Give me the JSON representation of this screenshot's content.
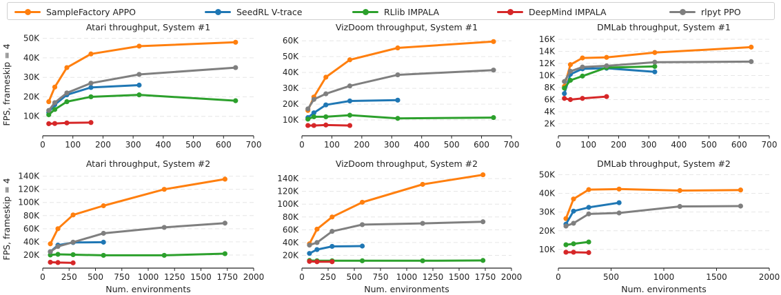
{
  "legend": {
    "items": [
      {
        "name": "SampleFactory APPO",
        "color": "#ff7f0e"
      },
      {
        "name": "SeedRL V-trace",
        "color": "#1f77b4"
      },
      {
        "name": "RLlib IMPALA",
        "color": "#2ca02c"
      },
      {
        "name": "DeepMind IMPALA",
        "color": "#d62728"
      },
      {
        "name": "rlpyt PPO",
        "color": "#7f7f7f"
      }
    ]
  },
  "ylabel_shared": "FPS, frameskip = 4",
  "xlabel_shared": "Num. environments",
  "chart_data": [
    {
      "type": "line",
      "title": "Atari throughput, System #1",
      "xlim": [
        0,
        700
      ],
      "xticks": [
        0,
        100,
        200,
        300,
        400,
        500,
        600,
        700
      ],
      "ylim": [
        0,
        52000
      ],
      "yticks": [
        10000,
        20000,
        30000,
        40000,
        50000
      ],
      "yticklabels": [
        "10K",
        "20K",
        "30K",
        "40K",
        "50K"
      ],
      "series": [
        {
          "name": "SampleFactory APPO",
          "color": "#ff7f0e",
          "x": [
            20,
            40,
            80,
            160,
            320,
            640
          ],
          "y": [
            17500,
            25000,
            35000,
            42000,
            46000,
            48000
          ]
        },
        {
          "name": "SeedRL V-trace",
          "color": "#1f77b4",
          "x": [
            20,
            40,
            80,
            160,
            320
          ],
          "y": [
            12000,
            16000,
            21000,
            24800,
            26000
          ]
        },
        {
          "name": "RLlib IMPALA",
          "color": "#2ca02c",
          "x": [
            20,
            40,
            80,
            160,
            320,
            640
          ],
          "y": [
            10800,
            13500,
            17500,
            20000,
            21000,
            18000
          ]
        },
        {
          "name": "DeepMind IMPALA",
          "color": "#d62728",
          "x": [
            20,
            40,
            80,
            160
          ],
          "y": [
            6200,
            6300,
            6600,
            6800
          ]
        },
        {
          "name": "rlpyt PPO",
          "color": "#7f7f7f",
          "x": [
            20,
            40,
            80,
            160,
            320,
            640
          ],
          "y": [
            13000,
            17000,
            22000,
            27000,
            31500,
            35000
          ]
        }
      ]
    },
    {
      "type": "line",
      "title": "VizDoom throughput, System #1",
      "xlim": [
        0,
        700
      ],
      "xticks": [
        0,
        100,
        200,
        300,
        400,
        500,
        600,
        700
      ],
      "ylim": [
        0,
        64000
      ],
      "yticks": [
        10000,
        20000,
        30000,
        40000,
        50000,
        60000
      ],
      "yticklabels": [
        "10K",
        "20K",
        "30K",
        "40K",
        "50K",
        "60K"
      ],
      "series": [
        {
          "name": "SampleFactory APPO",
          "color": "#ff7f0e",
          "x": [
            20,
            40,
            80,
            160,
            320,
            640
          ],
          "y": [
            16000,
            24500,
            37000,
            48000,
            55500,
            59500
          ]
        },
        {
          "name": "SeedRL V-trace",
          "color": "#1f77b4",
          "x": [
            20,
            40,
            80,
            160,
            320
          ],
          "y": [
            11500,
            14500,
            19500,
            22000,
            22500
          ]
        },
        {
          "name": "RLlib IMPALA",
          "color": "#2ca02c",
          "x": [
            20,
            40,
            80,
            160,
            320,
            640
          ],
          "y": [
            10500,
            12000,
            12000,
            13000,
            11000,
            11500
          ]
        },
        {
          "name": "DeepMind IMPALA",
          "color": "#d62728",
          "x": [
            20,
            40,
            80,
            160
          ],
          "y": [
            6500,
            6500,
            6800,
            6500
          ]
        },
        {
          "name": "rlpyt PPO",
          "color": "#7f7f7f",
          "x": [
            20,
            40,
            80,
            160,
            320,
            640
          ],
          "y": [
            17000,
            23000,
            26500,
            31500,
            38500,
            41500
          ]
        }
      ]
    },
    {
      "type": "line",
      "title": "DMLab throughput, System #1",
      "xlim": [
        0,
        700
      ],
      "xticks": [
        0,
        100,
        200,
        300,
        400,
        500,
        600,
        700
      ],
      "ylim": [
        0,
        16800
      ],
      "yticks": [
        2000,
        4000,
        6000,
        8000,
        10000,
        12000,
        14000,
        16000
      ],
      "yticklabels": [
        "2K",
        "4K",
        "6K",
        "8K",
        "10K",
        "12K",
        "14K",
        "16K"
      ],
      "series": [
        {
          "name": "SampleFactory APPO",
          "color": "#ff7f0e",
          "x": [
            20,
            40,
            80,
            160,
            320,
            640
          ],
          "y": [
            8200,
            11800,
            12900,
            13000,
            13800,
            14700
          ]
        },
        {
          "name": "SeedRL V-trace",
          "color": "#1f77b4",
          "x": [
            20,
            40,
            80,
            160,
            320
          ],
          "y": [
            7000,
            10200,
            11100,
            11200,
            10600
          ]
        },
        {
          "name": "RLlib IMPALA",
          "color": "#2ca02c",
          "x": [
            20,
            40,
            80,
            160,
            320
          ],
          "y": [
            7900,
            9200,
            9900,
            11300,
            11500
          ]
        },
        {
          "name": "DeepMind IMPALA",
          "color": "#d62728",
          "x": [
            20,
            40,
            80,
            160
          ],
          "y": [
            6200,
            6000,
            6200,
            6500
          ]
        },
        {
          "name": "rlpyt PPO",
          "color": "#7f7f7f",
          "x": [
            20,
            40,
            80,
            160,
            320,
            640
          ],
          "y": [
            9000,
            10700,
            11400,
            11600,
            12200,
            12300
          ]
        }
      ]
    },
    {
      "type": "line",
      "title": "Atari throughput, System #2",
      "xlim": [
        0,
        2000
      ],
      "xticks": [
        0,
        250,
        500,
        750,
        1000,
        1250,
        1500,
        1750,
        2000
      ],
      "ylim": [
        0,
        148000
      ],
      "yticks": [
        20000,
        40000,
        60000,
        80000,
        100000,
        120000,
        140000
      ],
      "yticklabels": [
        "20K",
        "40K",
        "60K",
        "80K",
        "100K",
        "120K",
        "140K"
      ],
      "series": [
        {
          "name": "SampleFactory APPO",
          "color": "#ff7f0e",
          "x": [
            72,
            144,
            288,
            576,
            1152,
            1728
          ],
          "y": [
            37000,
            60000,
            81000,
            95000,
            120000,
            135500
          ]
        },
        {
          "name": "SeedRL V-trace",
          "color": "#1f77b4",
          "x": [
            72,
            144,
            288,
            576
          ],
          "y": [
            25000,
            35000,
            39000,
            39500
          ]
        },
        {
          "name": "RLlib IMPALA",
          "color": "#2ca02c",
          "x": [
            72,
            144,
            288,
            576,
            1152,
            1728
          ],
          "y": [
            20000,
            21000,
            20500,
            19500,
            19500,
            22000
          ]
        },
        {
          "name": "DeepMind IMPALA",
          "color": "#d62728",
          "x": [
            72,
            144,
            288
          ],
          "y": [
            9000,
            8500,
            8000
          ]
        },
        {
          "name": "rlpyt PPO",
          "color": "#7f7f7f",
          "x": [
            72,
            144,
            288,
            576,
            1152,
            1728
          ],
          "y": [
            25000,
            33000,
            39500,
            53000,
            62000,
            68500
          ]
        }
      ]
    },
    {
      "type": "line",
      "title": "VizDoom throughput, System #2",
      "xlim": [
        0,
        2000
      ],
      "xticks": [
        0,
        250,
        500,
        750,
        1000,
        1250,
        1500,
        1750,
        2000
      ],
      "ylim": [
        0,
        152000
      ],
      "yticks": [
        20000,
        40000,
        60000,
        80000,
        100000,
        120000,
        140000
      ],
      "yticklabels": [
        "20K",
        "40K",
        "60K",
        "80K",
        "100K",
        "120K",
        "140K"
      ],
      "series": [
        {
          "name": "SampleFactory APPO",
          "color": "#ff7f0e",
          "x": [
            72,
            144,
            288,
            576,
            1152,
            1728
          ],
          "y": [
            38000,
            61000,
            80000,
            103000,
            131000,
            146000
          ]
        },
        {
          "name": "SeedRL V-trace",
          "color": "#1f77b4",
          "x": [
            72,
            144,
            288,
            576
          ],
          "y": [
            23000,
            29000,
            34000,
            34500
          ]
        },
        {
          "name": "RLlib IMPALA",
          "color": "#2ca02c",
          "x": [
            72,
            144,
            288,
            576,
            1152,
            1728
          ],
          "y": [
            12000,
            11500,
            11500,
            11500,
            11500,
            12000
          ]
        },
        {
          "name": "DeepMind IMPALA",
          "color": "#d62728",
          "x": [
            72,
            144,
            288
          ],
          "y": [
            10500,
            10000,
            10000
          ]
        },
        {
          "name": "rlpyt PPO",
          "color": "#7f7f7f",
          "x": [
            72,
            144,
            288,
            576,
            1152,
            1728
          ],
          "y": [
            36000,
            40000,
            57500,
            68000,
            70000,
            72500
          ]
        }
      ]
    },
    {
      "type": "line",
      "title": "DMLab throughput, System #2",
      "xlim": [
        0,
        2000
      ],
      "xticks": [
        0,
        500,
        1000,
        1500,
        2000
      ],
      "ylim": [
        0,
        52000
      ],
      "yticks": [
        10000,
        20000,
        30000,
        40000,
        50000
      ],
      "yticklabels": [
        "10K",
        "20K",
        "30K",
        "40K",
        "50K"
      ],
      "series": [
        {
          "name": "SampleFactory APPO",
          "color": "#ff7f0e",
          "x": [
            72,
            144,
            288,
            576,
            1152,
            1728
          ],
          "y": [
            26500,
            37000,
            42000,
            42300,
            41500,
            41800
          ]
        },
        {
          "name": "SeedRL V-trace",
          "color": "#1f77b4",
          "x": [
            72,
            144,
            288,
            576
          ],
          "y": [
            23500,
            30500,
            32500,
            35000
          ]
        },
        {
          "name": "RLlib IMPALA",
          "color": "#2ca02c",
          "x": [
            72,
            144,
            288
          ],
          "y": [
            12500,
            13000,
            14000
          ]
        },
        {
          "name": "DeepMind IMPALA",
          "color": "#d62728",
          "x": [
            72,
            144,
            288
          ],
          "y": [
            8500,
            8500,
            8300
          ]
        },
        {
          "name": "rlpyt PPO",
          "color": "#7f7f7f",
          "x": [
            72,
            144,
            288,
            576,
            1152,
            1728
          ],
          "y": [
            22500,
            24000,
            29000,
            29500,
            33000,
            33200
          ]
        }
      ]
    }
  ]
}
